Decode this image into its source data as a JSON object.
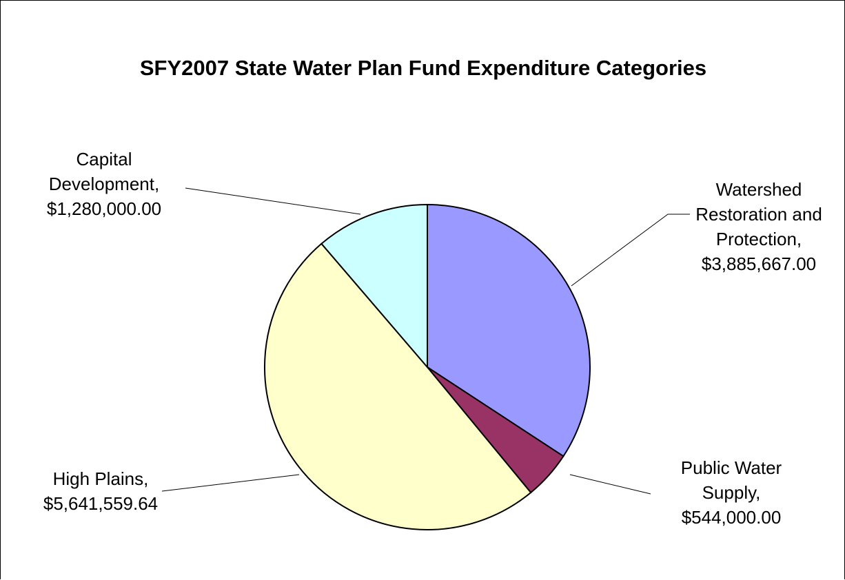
{
  "chart_data": {
    "type": "pie",
    "title": "SFY2007 State Water Plan Fund Expenditure Categories",
    "start_angle_deg": 0,
    "direction": "clockwise",
    "slices": [
      {
        "name": "Watershed Restoration and Protection",
        "value": 3885667.0,
        "label_lines": [
          "Watershed",
          "Restoration and",
          "Protection,",
          "$3,885,667.00"
        ],
        "color": "#9999FF",
        "label_position": "right"
      },
      {
        "name": "Public Water Supply",
        "value": 544000.0,
        "label_lines": [
          "Public Water",
          "Supply,",
          "$544,000.00"
        ],
        "color": "#993366",
        "label_position": "bottom-right"
      },
      {
        "name": "High Plains",
        "value": 5641559.64,
        "label_lines": [
          "High Plains,",
          "$5,641,559.64"
        ],
        "color": "#FFFFCC",
        "label_position": "bottom-left"
      },
      {
        "name": "Capital Development",
        "value": 1280000.0,
        "label_lines": [
          "Capital",
          "Development,",
          "$1,280,000.00"
        ],
        "color": "#CCFFFF",
        "label_position": "top-left"
      }
    ],
    "legend": "none"
  }
}
